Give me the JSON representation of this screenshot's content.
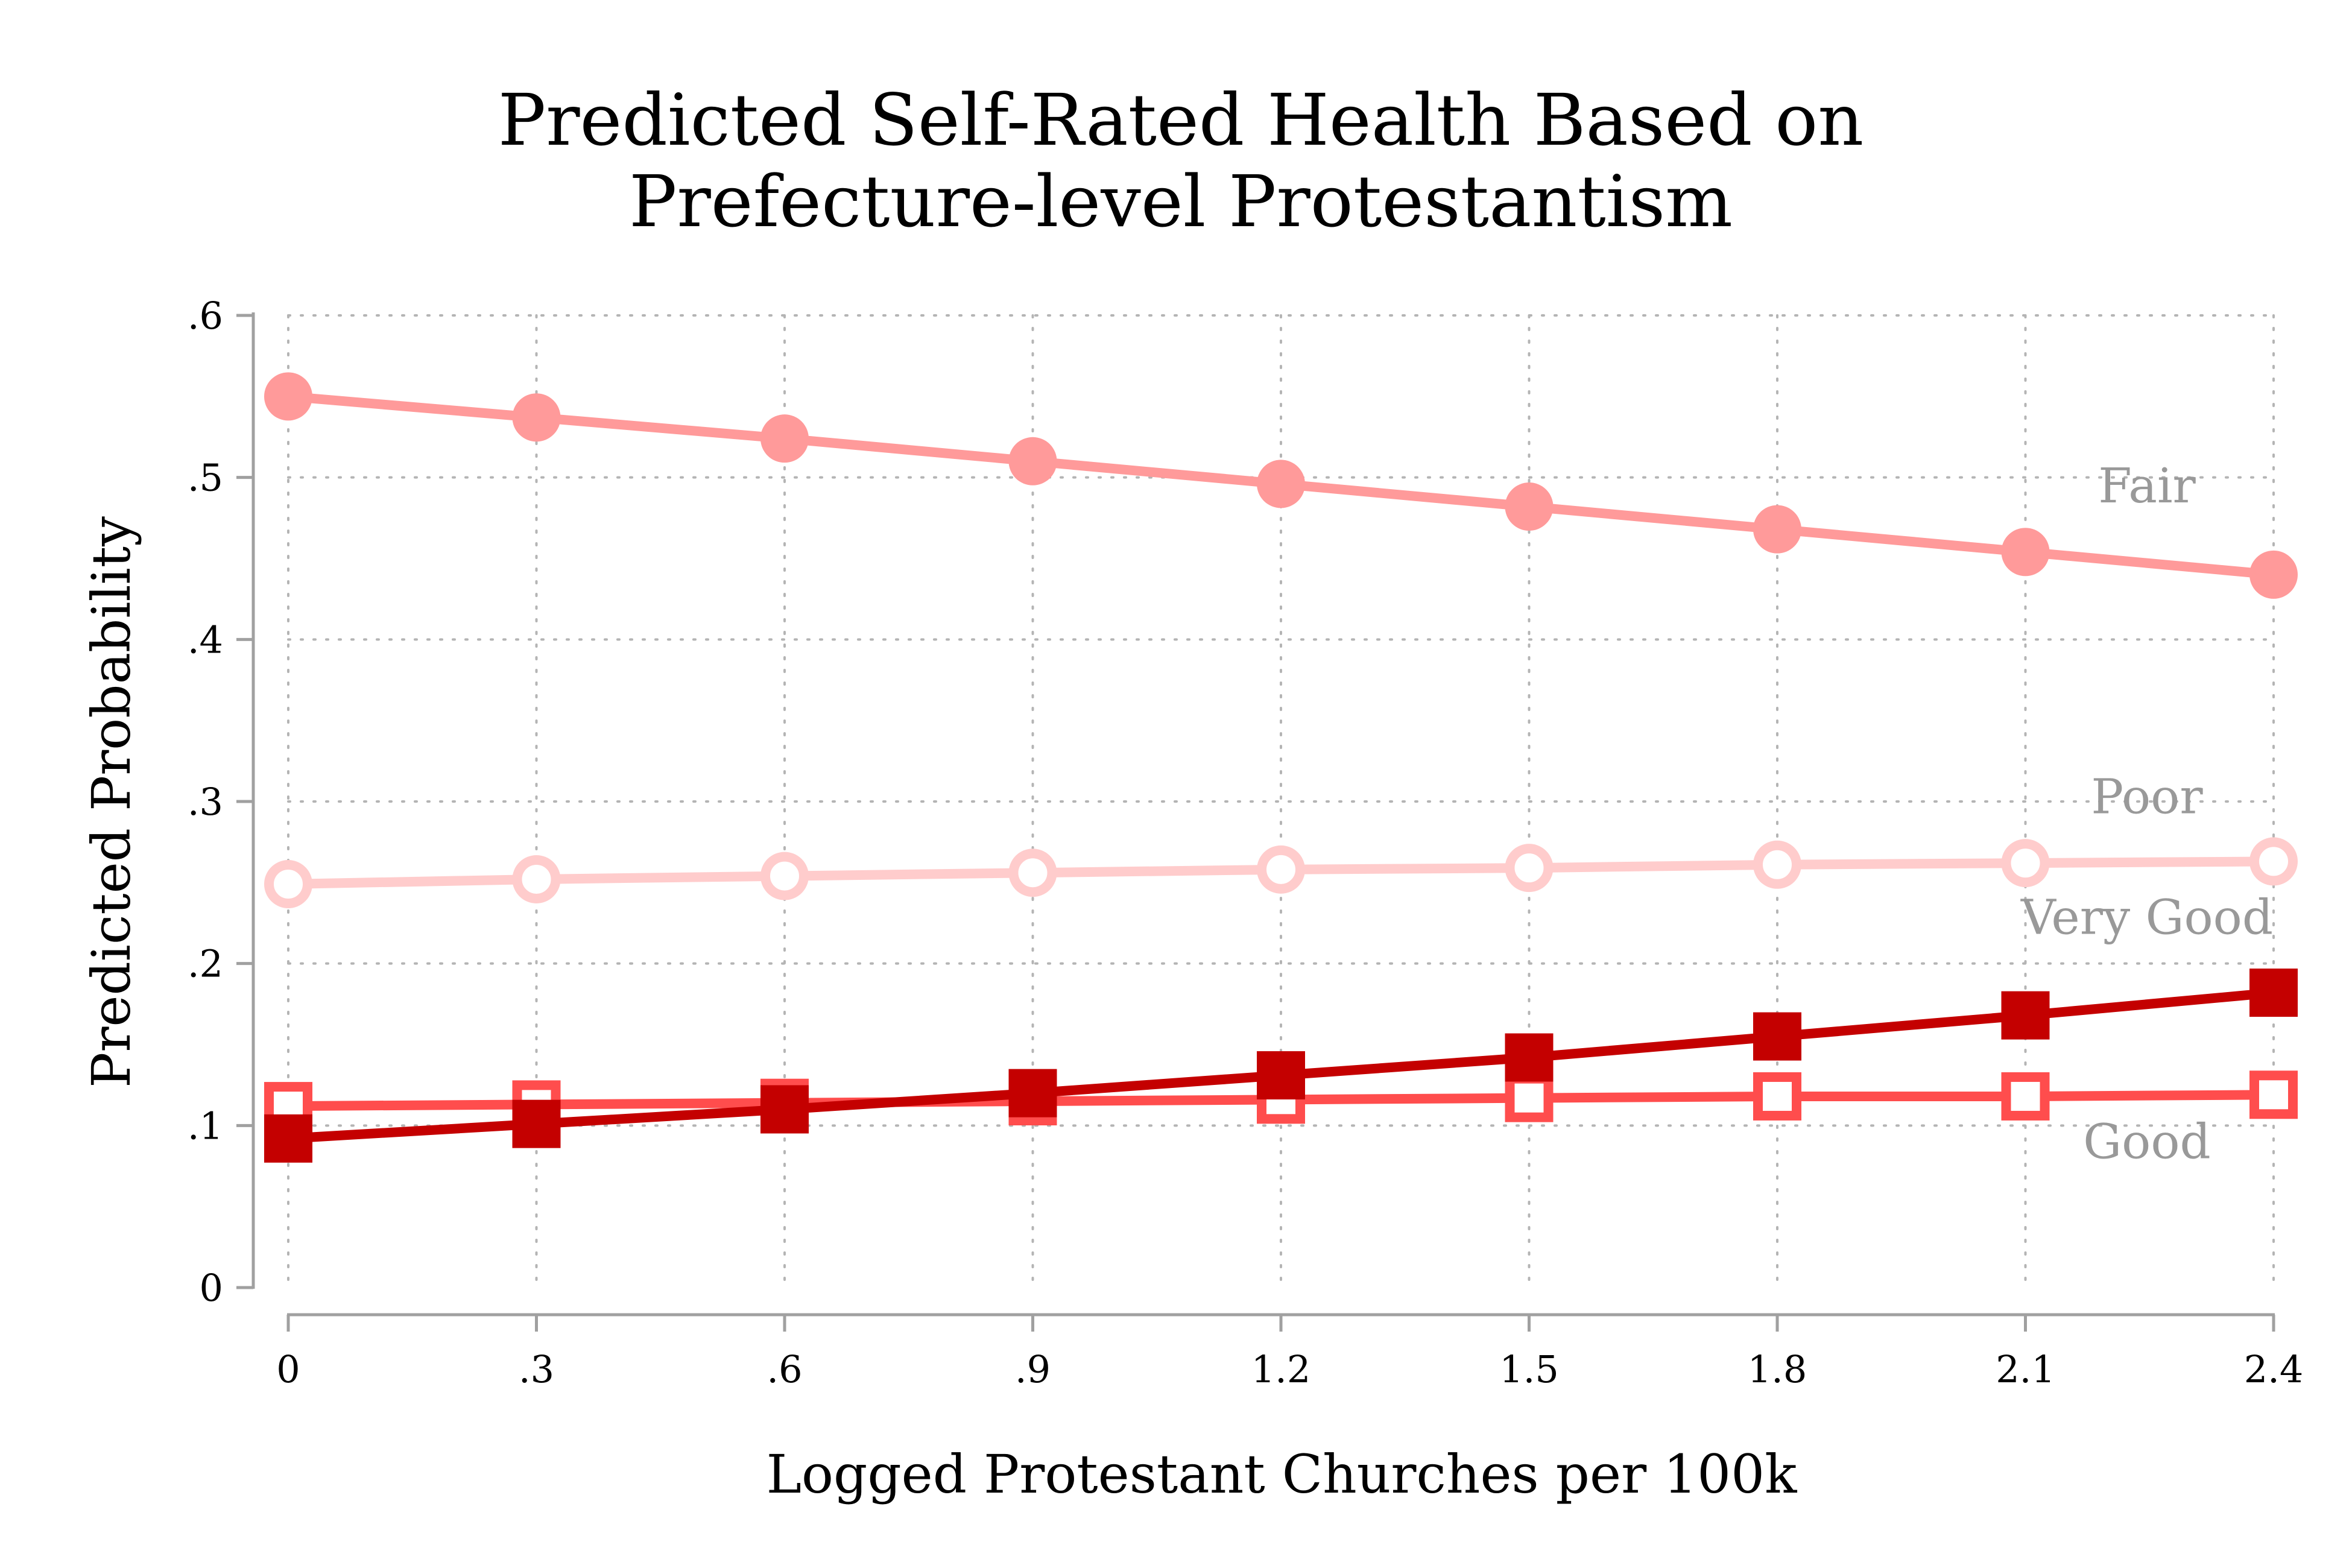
{
  "chart_data": {
    "type": "line",
    "title": "Predicted Self-Rated Health Based on",
    "subtitle": "Prefecture-level Protestantism",
    "xlabel": "Logged Protestant Churches per 100k",
    "ylabel": "Predicted Probability",
    "x": [
      0,
      0.3,
      0.6,
      0.9,
      1.2,
      1.5,
      1.8,
      2.1,
      2.4
    ],
    "x_tick_labels": [
      "0",
      ".3",
      ".6",
      ".9",
      "1.2",
      "1.5",
      "1.8",
      "2.1",
      "2.4"
    ],
    "y_ticks": [
      0,
      0.1,
      0.2,
      0.3,
      0.4,
      0.5,
      0.6
    ],
    "y_tick_labels": [
      "0",
      ".1",
      ".2",
      ".3",
      ".4",
      ".5",
      ".6"
    ],
    "xlim": [
      0,
      2.4
    ],
    "ylim": [
      0,
      0.6
    ],
    "grid": true,
    "legend": "inline labels at right end of lines",
    "series": [
      {
        "name": "Fair",
        "color": "#ff9a9a",
        "marker": "filled-circle",
        "values": [
          0.55,
          0.537,
          0.524,
          0.51,
          0.496,
          0.482,
          0.468,
          0.454,
          0.44
        ]
      },
      {
        "name": "Poor",
        "color": "#ffcccc",
        "marker": "hollow-circle",
        "values": [
          0.249,
          0.252,
          0.254,
          0.256,
          0.258,
          0.259,
          0.261,
          0.262,
          0.263
        ]
      },
      {
        "name": "Very Good",
        "color": "#c40000",
        "marker": "filled-square",
        "values": [
          0.092,
          0.101,
          0.11,
          0.12,
          0.131,
          0.142,
          0.155,
          0.168,
          0.182
        ]
      },
      {
        "name": "Good",
        "color": "#ff4d4d",
        "marker": "hollow-square",
        "values": [
          0.112,
          0.113,
          0.114,
          0.115,
          0.116,
          0.117,
          0.118,
          0.118,
          0.119
        ]
      }
    ]
  }
}
